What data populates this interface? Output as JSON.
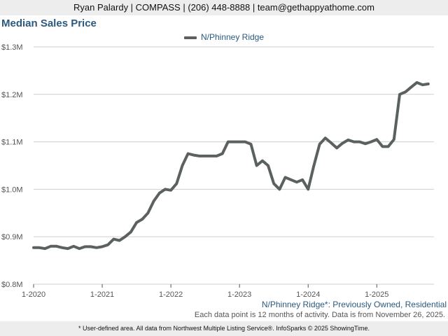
{
  "header": {
    "text": "Ryan Palardy | COMPASS | (206) 448-8888 | team@gethappyathome.com"
  },
  "subtitle": "N/Phinney Ridge*: Previously Owned, Residential",
  "note": "Each data point is 12 months of activity. Data is from November 26, 2025.",
  "footer": {
    "text": "* User-defined area. All data from Northwest Multiple Listing Service®. InfoSparks © 2025 ShowingTime."
  },
  "colors": {
    "line": "#5b6160",
    "title": "#2b5a7e",
    "grid": "#cfcfcf",
    "axis": "#555555"
  },
  "chart_data": {
    "type": "line",
    "title": "Median Sales Price",
    "xlabel": "",
    "ylabel": "",
    "grid": true,
    "legend_position": "top-center",
    "ylim": [
      800000,
      1300000
    ],
    "yticks": [
      800000,
      900000,
      1000000,
      1100000,
      1200000,
      1300000
    ],
    "ytick_labels": [
      "$0.8M",
      "$0.9M",
      "$1.0M",
      "$1.1M",
      "$1.2M",
      "$1.3M"
    ],
    "xlim": [
      "2020-01",
      "2025-11"
    ],
    "xticks": [
      "2020-01",
      "2021-01",
      "2022-01",
      "2023-01",
      "2024-01",
      "2025-01"
    ],
    "xtick_labels": [
      "1-2020",
      "1-2021",
      "1-2022",
      "1-2023",
      "1-2024",
      "1-2025"
    ],
    "x": [
      "2020-01",
      "2020-02",
      "2020-03",
      "2020-04",
      "2020-05",
      "2020-06",
      "2020-07",
      "2020-08",
      "2020-09",
      "2020-10",
      "2020-11",
      "2020-12",
      "2021-01",
      "2021-02",
      "2021-03",
      "2021-04",
      "2021-05",
      "2021-06",
      "2021-07",
      "2021-08",
      "2021-09",
      "2021-10",
      "2021-11",
      "2021-12",
      "2022-01",
      "2022-02",
      "2022-03",
      "2022-04",
      "2022-05",
      "2022-06",
      "2022-07",
      "2022-08",
      "2022-09",
      "2022-10",
      "2022-11",
      "2022-12",
      "2023-01",
      "2023-02",
      "2023-03",
      "2023-04",
      "2023-05",
      "2023-06",
      "2023-07",
      "2023-08",
      "2023-09",
      "2023-10",
      "2023-11",
      "2023-12",
      "2024-01",
      "2024-02",
      "2024-03",
      "2024-04",
      "2024-05",
      "2024-06",
      "2024-07",
      "2024-08",
      "2024-09",
      "2024-10",
      "2024-11",
      "2024-12",
      "2025-01",
      "2025-02",
      "2025-03",
      "2025-04",
      "2025-05",
      "2025-06",
      "2025-07",
      "2025-08",
      "2025-09",
      "2025-10"
    ],
    "series": [
      {
        "name": "N/Phinney Ridge",
        "values": [
          877000,
          877000,
          875000,
          880000,
          880000,
          877000,
          875000,
          880000,
          875000,
          879000,
          879000,
          877000,
          879000,
          883000,
          895000,
          892000,
          900000,
          910000,
          930000,
          937000,
          950000,
          975000,
          992000,
          1000000,
          998000,
          1012000,
          1050000,
          1075000,
          1072000,
          1070000,
          1070000,
          1070000,
          1070000,
          1075000,
          1100000,
          1100000,
          1100000,
          1100000,
          1095000,
          1050000,
          1060000,
          1050000,
          1012000,
          1000000,
          1025000,
          1020000,
          1015000,
          1020000,
          1000000,
          1050000,
          1095000,
          1108000,
          1098000,
          1087000,
          1097000,
          1104000,
          1100000,
          1100000,
          1096000,
          1100000,
          1105000,
          1090000,
          1090000,
          1105000,
          1200000,
          1205000,
          1215000,
          1225000,
          1220000,
          1222000
        ]
      }
    ]
  }
}
